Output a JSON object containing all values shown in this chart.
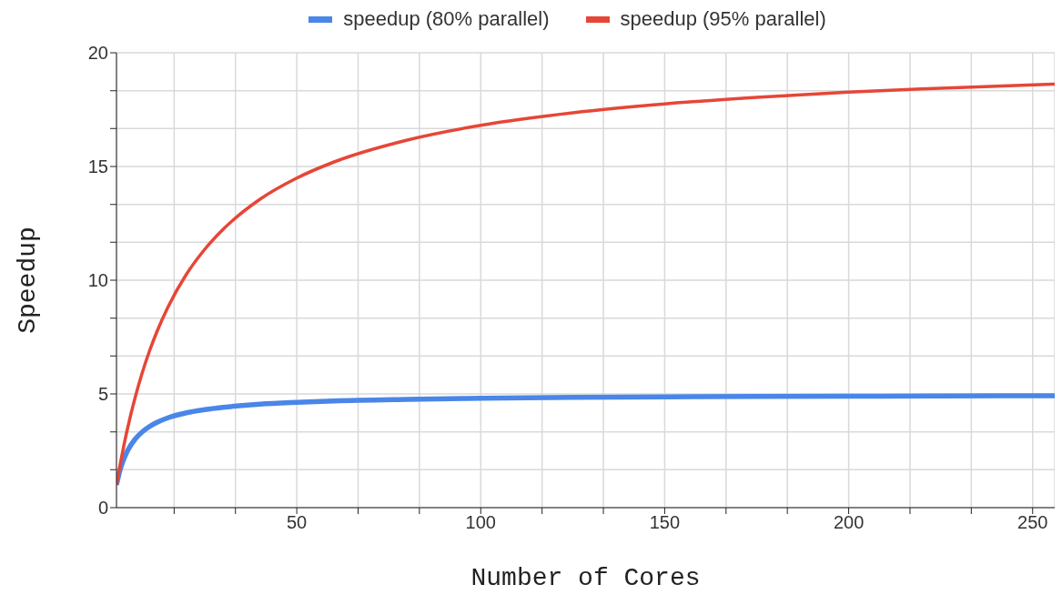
{
  "chart_data": {
    "type": "line",
    "xlabel": "Number of Cores",
    "ylabel": "Speedup",
    "x": [
      1,
      2,
      3,
      4,
      6,
      8,
      10,
      12,
      15,
      20,
      25,
      30,
      40,
      50,
      60,
      80,
      100,
      125,
      150,
      175,
      200,
      225,
      256
    ],
    "series": [
      {
        "name": "speedup (80% parallel)",
        "color": "#4a86e8",
        "values": [
          1,
          1.67,
          2.14,
          2.5,
          3,
          3.33,
          3.57,
          3.75,
          3.95,
          4.17,
          4.31,
          4.41,
          4.55,
          4.63,
          4.69,
          4.76,
          4.81,
          4.85,
          4.87,
          4.89,
          4.9,
          4.91,
          4.92
        ]
      },
      {
        "name": "speedup (95% parallel)",
        "color": "#e64637",
        "values": [
          1,
          1.9,
          2.73,
          3.48,
          4.8,
          5.93,
          6.9,
          7.74,
          8.82,
          10.26,
          11.36,
          12.24,
          13.56,
          14.49,
          15.19,
          16.16,
          16.81,
          17.36,
          17.75,
          18.04,
          18.27,
          18.44,
          18.62
        ]
      }
    ],
    "xlim": [
      1,
      256
    ],
    "xticks": [
      {
        "value": 16.67,
        "label": null
      },
      {
        "value": 33.33,
        "label": null
      },
      50,
      {
        "value": 66.67,
        "label": null
      },
      {
        "value": 83.33,
        "label": null
      },
      100,
      {
        "value": 116.67,
        "label": null
      },
      {
        "value": 133.33,
        "label": null
      },
      150,
      {
        "value": 166.67,
        "label": null
      },
      {
        "value": 183.33,
        "label": null
      },
      200,
      {
        "value": 216.67,
        "label": null
      },
      {
        "value": 233.33,
        "label": null
      },
      250
    ],
    "ylim": [
      0,
      20
    ],
    "yticks": [
      0,
      {
        "value": 1.67,
        "label": null
      },
      {
        "value": 3.33,
        "label": null
      },
      5,
      {
        "value": 6.67,
        "label": null
      },
      {
        "value": 8.33,
        "label": null
      },
      10,
      {
        "value": 11.67,
        "label": null
      },
      {
        "value": 13.33,
        "label": null
      },
      15,
      {
        "value": 16.67,
        "label": null
      },
      {
        "value": 18.33,
        "label": null
      },
      20
    ],
    "grid": true,
    "legend": "top",
    "marker": "none",
    "line_style": "solid"
  }
}
